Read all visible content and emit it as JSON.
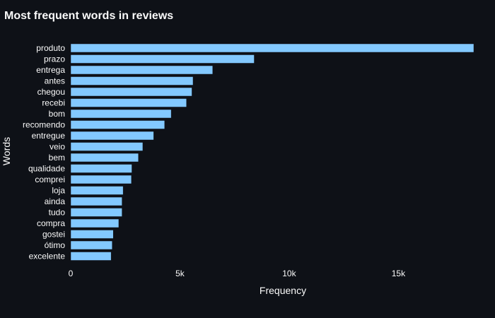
{
  "chart_data": {
    "type": "bar",
    "orientation": "horizontal",
    "title": "Most frequent words in reviews",
    "xlabel": "Frequency",
    "ylabel": "Words",
    "categories": [
      "produto",
      "prazo",
      "entrega",
      "antes",
      "chegou",
      "recebi",
      "bom",
      "recomendo",
      "entregue",
      "veio",
      "bem",
      "qualidade",
      "comprei",
      "loja",
      "ainda",
      "tudo",
      "compra",
      "gostei",
      "ótimo",
      "excelente"
    ],
    "values": [
      18450,
      8400,
      6500,
      5600,
      5550,
      5300,
      4600,
      4300,
      3800,
      3300,
      3100,
      2800,
      2780,
      2400,
      2350,
      2350,
      2200,
      1950,
      1900,
      1850
    ],
    "xlim": [
      0,
      18450
    ],
    "xticks": [
      0,
      5000,
      10000,
      15000
    ],
    "xtick_labels": [
      "0",
      "5k",
      "10k",
      "15k"
    ],
    "grid": false,
    "legend": "none",
    "bar_color": "#83c9ff",
    "background_color": "#0e1117",
    "text_color": "#fafafa"
  }
}
